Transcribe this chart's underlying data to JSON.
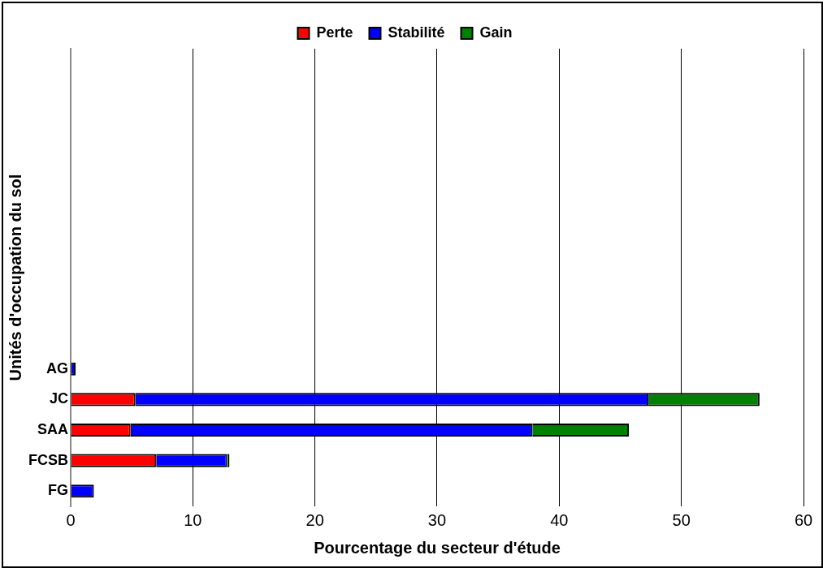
{
  "chart_data": {
    "type": "bar",
    "orientation": "horizontal",
    "stacked": true,
    "xlabel": "Pourcentage du secteur d'étude",
    "ylabel": "Unités d'occupation du sol",
    "categories": [
      null,
      null,
      null,
      null,
      null,
      null,
      null,
      null,
      null,
      null,
      "AG",
      "JC",
      "SAA",
      "FCSB",
      "FG"
    ],
    "series": [
      {
        "name": "Perte",
        "color": "#ff0000",
        "values": [
          null,
          null,
          null,
          null,
          null,
          null,
          null,
          null,
          null,
          null,
          0,
          5.3,
          4.9,
          7.0,
          0
        ]
      },
      {
        "name": "Stabilité",
        "color": "#0000ff",
        "values": [
          null,
          null,
          null,
          null,
          null,
          null,
          null,
          null,
          null,
          null,
          0.4,
          42.0,
          32.9,
          5.8,
          1.9
        ]
      },
      {
        "name": "Gain",
        "color": "#008000",
        "values": [
          null,
          null,
          null,
          null,
          null,
          null,
          null,
          null,
          null,
          null,
          0,
          9.1,
          7.9,
          0.2,
          0
        ]
      }
    ],
    "xlim": [
      0,
      60
    ],
    "xticks": [
      0,
      10,
      20,
      30,
      40,
      50,
      60
    ],
    "grid": "x",
    "legend": "top"
  }
}
